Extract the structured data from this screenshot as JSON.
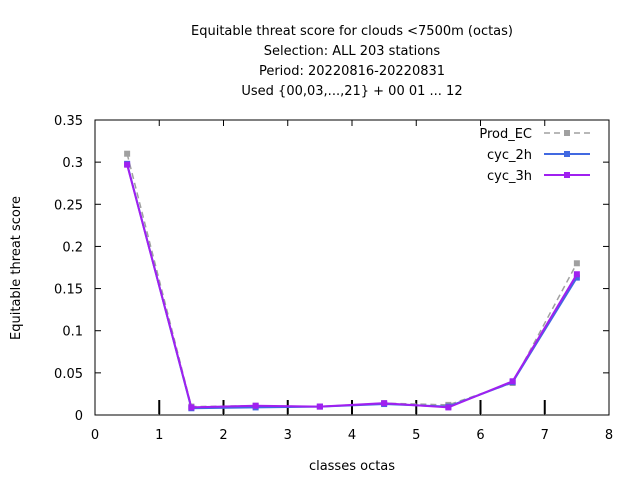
{
  "chart_data": {
    "type": "line",
    "title_lines": [
      "Equitable threat score  for clouds <7500m (octas)",
      "Selection: ALL    203 stations",
      "Period: 20220816-20220831",
      "Used {00,03,...,21} + 00 01 ... 12"
    ],
    "xlabel": "classes octas",
    "ylabel": "Equitable threat score",
    "xlim": [
      0,
      8
    ],
    "ylim": [
      0,
      0.35
    ],
    "x_ticks": [
      0,
      1,
      2,
      3,
      4,
      5,
      6,
      7,
      8
    ],
    "y_ticks": [
      0,
      0.05,
      0.1,
      0.15,
      0.2,
      0.25,
      0.3,
      0.35
    ],
    "x_tick_labels": [
      "0",
      "1",
      "2",
      "3",
      "4",
      "5",
      "6",
      "7",
      "8"
    ],
    "y_tick_labels": [
      "0",
      "0.05",
      "0.1",
      "0.15",
      "0.2",
      "0.25",
      "0.3",
      "0.35"
    ],
    "grid": false,
    "legend_position": "top-right",
    "x": [
      0.5,
      1.5,
      2.5,
      3.5,
      4.5,
      5.5,
      6.5,
      7.5
    ],
    "series": [
      {
        "name": "Prod_EC",
        "color": "#a0a0a0",
        "dashed": true,
        "values": [
          0.31,
          0.01,
          0.011,
          0.01,
          0.014,
          0.012,
          0.038,
          0.18
        ]
      },
      {
        "name": "cyc_2h",
        "color": "#4169e1",
        "dashed": false,
        "values": [
          0.298,
          0.008,
          0.009,
          0.01,
          0.013,
          0.01,
          0.039,
          0.163
        ]
      },
      {
        "name": "cyc_3h",
        "color": "#a020f0",
        "dashed": false,
        "values": [
          0.297,
          0.009,
          0.011,
          0.01,
          0.014,
          0.009,
          0.04,
          0.167
        ]
      }
    ]
  }
}
